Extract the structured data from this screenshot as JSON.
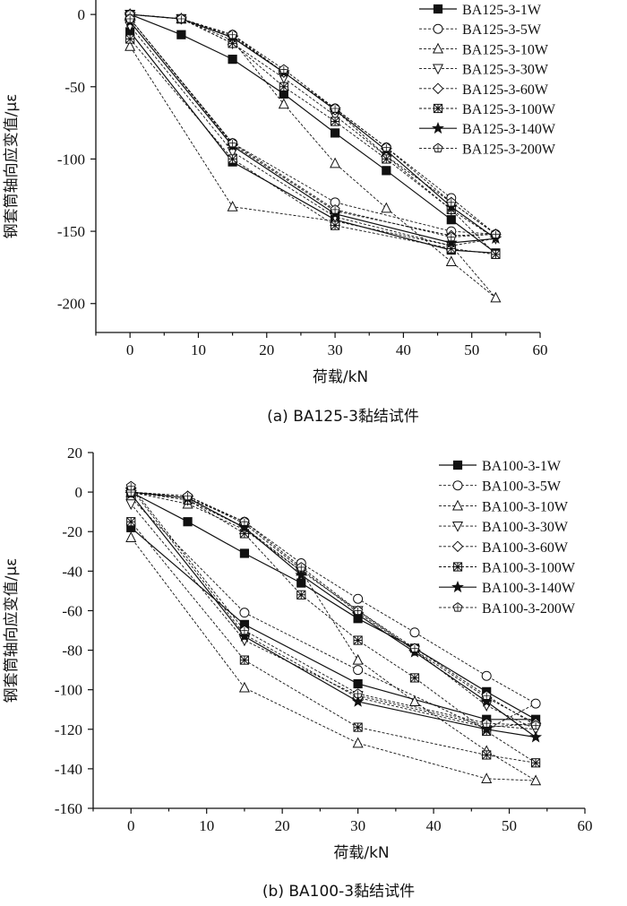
{
  "chart_data": [
    {
      "type": "line",
      "caption": "(a) BA125-3黏结试件",
      "xlabel": "荷载/kN",
      "ylabel": "钢套筒轴向应变值/με",
      "xlim": [
        -5,
        60
      ],
      "ylim": [
        -220,
        10
      ],
      "xticks": [
        0,
        10,
        20,
        30,
        40,
        50,
        60
      ],
      "yticks": [
        0,
        -50,
        -100,
        -150,
        -200
      ],
      "xtick_labels": [
        "0",
        "10",
        "20",
        "30",
        "40",
        "50",
        "60"
      ],
      "ytick_labels": [
        "0",
        "-50",
        "-100",
        "-150",
        "-200"
      ],
      "legend_position": "top-right",
      "series": [
        {
          "name": "BA125-3-1W",
          "marker": "square-filled",
          "dashed": false,
          "x": [
            0,
            7.5,
            15,
            22.5,
            30,
            37.5,
            47,
            53.5,
            47,
            30,
            15,
            0
          ],
          "y": [
            0,
            -14,
            -31,
            -55,
            -82,
            -108,
            -142,
            -165,
            -163,
            -142,
            -102,
            -12
          ]
        },
        {
          "name": "BA125-3-5W",
          "marker": "circle-open",
          "dashed": true,
          "x": [
            0,
            7.5,
            15,
            22.5,
            30,
            37.5,
            47,
            53.5,
            47,
            30,
            15,
            0
          ],
          "y": [
            0,
            -3,
            -14,
            -40,
            -65,
            -92,
            -127,
            -152,
            -150,
            -130,
            -89,
            -3
          ]
        },
        {
          "name": "BA125-3-10W",
          "marker": "triangle-open",
          "dashed": true,
          "x": [
            0,
            7.5,
            15,
            22.5,
            30,
            37.5,
            47,
            53.5,
            47,
            30,
            15,
            0
          ],
          "y": [
            0,
            -3,
            -18,
            -62,
            -103,
            -134,
            -171,
            -196,
            -160,
            -143,
            -133,
            -22
          ]
        },
        {
          "name": "BA125-3-30W",
          "marker": "triangle-down-open",
          "dashed": true,
          "x": [
            0,
            7.5,
            15,
            22.5,
            30,
            37.5,
            47,
            53.5,
            47,
            30,
            15,
            0
          ],
          "y": [
            0,
            -3,
            -20,
            -44,
            -70,
            -98,
            -135,
            -155,
            -160,
            -140,
            -95,
            -8
          ]
        },
        {
          "name": "BA125-3-60W",
          "marker": "diamond-open",
          "dashed": true,
          "x": [
            0,
            7.5,
            15,
            22.5,
            30,
            37.5,
            47,
            53.5,
            47,
            30,
            15,
            0
          ],
          "y": [
            0,
            -3,
            -15,
            -40,
            -66,
            -98,
            -130,
            -152,
            -153,
            -136,
            -90,
            -3
          ]
        },
        {
          "name": "BA125-3-100W",
          "marker": "square-x",
          "dashed": true,
          "x": [
            0,
            7.5,
            15,
            22.5,
            30,
            37.5,
            47,
            53.5,
            47,
            30,
            15,
            0
          ],
          "y": [
            0,
            -3,
            -20,
            -50,
            -74,
            -100,
            -135,
            -166,
            -162,
            -146,
            -100,
            -17
          ]
        },
        {
          "name": "BA125-3-140W",
          "marker": "star-filled",
          "dashed": false,
          "x": [
            0,
            7.5,
            15,
            22.5,
            30,
            37.5,
            47,
            53.5,
            47,
            30,
            15,
            0
          ],
          "y": [
            0,
            -3,
            -16,
            -40,
            -66,
            -94,
            -133,
            -155,
            -158,
            -138,
            -91,
            -5
          ]
        },
        {
          "name": "BA125-3-200W",
          "marker": "pentagon-open",
          "dashed": true,
          "x": [
            0,
            7.5,
            15,
            22.5,
            30,
            37.5,
            47,
            53.5,
            47,
            30,
            15,
            0
          ],
          "y": [
            0,
            -3,
            -14,
            -38,
            -65,
            -92,
            -130,
            -152,
            -154,
            -135,
            -89,
            -3
          ]
        }
      ]
    },
    {
      "type": "line",
      "caption": "(b) BA100-3黏结试件",
      "xlabel": "荷载/kN",
      "ylabel": "钢套筒轴向应变值/με",
      "xlim": [
        -5,
        60
      ],
      "ylim": [
        -160,
        20
      ],
      "xticks": [
        0,
        10,
        20,
        30,
        40,
        50,
        60
      ],
      "yticks": [
        20,
        0,
        -20,
        -40,
        -60,
        -80,
        -100,
        -120,
        -140,
        -160
      ],
      "xtick_labels": [
        "0",
        "10",
        "20",
        "30",
        "40",
        "50",
        "60"
      ],
      "ytick_labels": [
        "20",
        "0",
        "-20",
        "-40",
        "-60",
        "-80",
        "-100",
        "-120",
        "-140",
        "-160"
      ],
      "legend_position": "top-right",
      "series": [
        {
          "name": "BA100-3-1W",
          "marker": "square-filled",
          "dashed": false,
          "x": [
            0,
            7.5,
            15,
            22.5,
            30,
            37.5,
            47,
            53.5,
            47,
            30,
            15,
            0
          ],
          "y": [
            0,
            -15,
            -31,
            -46,
            -64,
            -79,
            -101,
            -115,
            -115,
            -97,
            -67,
            -18
          ]
        },
        {
          "name": "BA100-3-5W",
          "marker": "circle-open",
          "dashed": true,
          "x": [
            0,
            7.5,
            15,
            22.5,
            30,
            37.5,
            47,
            53.5,
            47,
            30,
            15,
            0
          ],
          "y": [
            0,
            -3,
            -15,
            -36,
            -54,
            -71,
            -93,
            -107,
            -120,
            -90,
            -61,
            -3
          ]
        },
        {
          "name": "BA100-3-10W",
          "marker": "triangle-open",
          "dashed": true,
          "x": [
            0,
            7.5,
            15,
            22.5,
            30,
            37.5,
            47,
            53.5,
            47,
            30,
            15,
            0
          ],
          "y": [
            0,
            -6,
            -19,
            -40,
            -85,
            -106,
            -131,
            -146,
            -145,
            -127,
            -99,
            -23
          ]
        },
        {
          "name": "BA100-3-30W",
          "marker": "triangle-down-open",
          "dashed": true,
          "x": [
            0,
            7.5,
            15,
            22.5,
            30,
            37.5,
            47,
            53.5,
            47,
            30,
            15,
            0
          ],
          "y": [
            0,
            -4,
            -18,
            -40,
            -60,
            -80,
            -108,
            -120,
            -118,
            -103,
            -75,
            -6
          ]
        },
        {
          "name": "BA100-3-60W",
          "marker": "diamond-open",
          "dashed": true,
          "x": [
            0,
            7.5,
            15,
            22.5,
            30,
            37.5,
            47,
            53.5,
            47,
            30,
            15,
            0
          ],
          "y": [
            0,
            -2,
            -16,
            -39,
            -61,
            -80,
            -104,
            -117,
            -119,
            -104,
            -72,
            2
          ]
        },
        {
          "name": "BA100-3-100W",
          "marker": "square-x",
          "dashed": true,
          "x": [
            0,
            7.5,
            15,
            22.5,
            30,
            37.5,
            47,
            53.5,
            47,
            30,
            15,
            0
          ],
          "y": [
            0,
            -4,
            -21,
            -52,
            -75,
            -94,
            -121,
            -137,
            -133,
            -119,
            -85,
            -15
          ]
        },
        {
          "name": "BA100-3-140W",
          "marker": "star-filled",
          "dashed": false,
          "x": [
            0,
            7.5,
            15,
            22.5,
            30,
            37.5,
            47,
            53.5,
            47,
            30,
            15,
            0
          ],
          "y": [
            0,
            -3,
            -18,
            -42,
            -62,
            -81,
            -106,
            -124,
            -120,
            -106,
            -73,
            -1
          ]
        },
        {
          "name": "BA100-3-200W",
          "marker": "pentagon-open",
          "dashed": true,
          "x": [
            0,
            7.5,
            15,
            22.5,
            30,
            37.5,
            47,
            53.5,
            47,
            30,
            15,
            0
          ],
          "y": [
            0,
            -2,
            -15,
            -38,
            -60,
            -79,
            -103,
            -118,
            -117,
            -102,
            -70,
            3
          ]
        }
      ]
    }
  ]
}
